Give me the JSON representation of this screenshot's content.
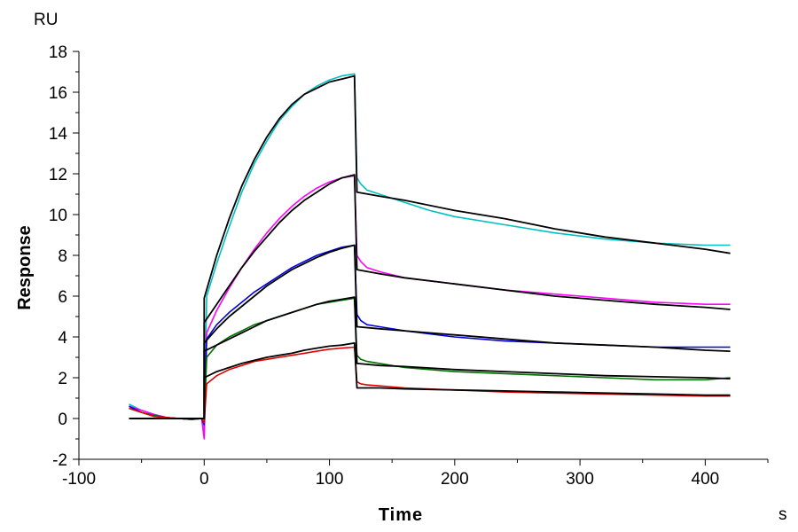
{
  "chart_data": {
    "type": "line",
    "xlabel": "Time",
    "ylabel": "Response",
    "x_unit": "s",
    "y_unit": "RU",
    "xlim": [
      -100,
      450
    ],
    "ylim": [
      -2,
      18
    ],
    "x_ticks": [
      -100,
      0,
      100,
      200,
      300,
      400
    ],
    "y_ticks": [
      -2,
      0,
      2,
      4,
      6,
      8,
      10,
      12,
      14,
      16,
      18
    ],
    "x_tick_labels": [
      "-100",
      "0",
      "100",
      "200",
      "300",
      "400"
    ],
    "y_tick_labels": [
      "-2",
      "0",
      "2",
      "4",
      "6",
      "8",
      "10",
      "12",
      "14",
      "16",
      "18"
    ],
    "grid": false,
    "series": [
      {
        "color": "#00c0c0",
        "role": "measured",
        "x": [
          -60,
          -50,
          -40,
          -30,
          -20,
          -10,
          -2,
          0,
          2,
          10,
          20,
          30,
          40,
          50,
          60,
          70,
          80,
          90,
          100,
          110,
          120,
          122,
          125,
          130,
          140,
          160,
          180,
          200,
          240,
          280,
          320,
          360,
          400,
          420
        ],
        "y": [
          0.7,
          0.4,
          0.2,
          0.05,
          0.0,
          -0.05,
          0.0,
          -0.5,
          6.0,
          7.6,
          9.4,
          11.1,
          12.5,
          13.6,
          14.6,
          15.3,
          15.9,
          16.3,
          16.6,
          16.8,
          16.9,
          11.8,
          11.5,
          11.2,
          11.0,
          10.6,
          10.2,
          9.9,
          9.5,
          9.1,
          8.8,
          8.6,
          8.5,
          8.5
        ]
      },
      {
        "color": "#ff00ff",
        "role": "measured",
        "x": [
          -60,
          -50,
          -40,
          -30,
          -20,
          -10,
          -2,
          0,
          2,
          10,
          20,
          30,
          40,
          50,
          60,
          70,
          80,
          90,
          100,
          110,
          120,
          122,
          125,
          130,
          140,
          160,
          200,
          240,
          280,
          320,
          360,
          400,
          420
        ],
        "y": [
          0.6,
          0.4,
          0.2,
          0.05,
          0.0,
          -0.05,
          0.0,
          -1.0,
          4.2,
          5.3,
          6.4,
          7.4,
          8.3,
          9.1,
          9.8,
          10.4,
          10.9,
          11.3,
          11.6,
          11.8,
          11.9,
          8.0,
          7.7,
          7.4,
          7.2,
          6.9,
          6.6,
          6.3,
          6.1,
          5.9,
          5.7,
          5.6,
          5.6
        ]
      },
      {
        "color": "#0000e0",
        "role": "measured",
        "x": [
          -60,
          -50,
          -40,
          -30,
          -20,
          -10,
          -2,
          0,
          2,
          10,
          20,
          30,
          40,
          50,
          60,
          70,
          80,
          90,
          100,
          110,
          120,
          122,
          125,
          130,
          140,
          160,
          200,
          240,
          280,
          320,
          360,
          400,
          420
        ],
        "y": [
          0.6,
          0.3,
          0.15,
          0.05,
          0.0,
          -0.05,
          0.0,
          -0.3,
          3.9,
          4.6,
          5.2,
          5.7,
          6.2,
          6.6,
          7.0,
          7.4,
          7.7,
          8.0,
          8.2,
          8.4,
          8.5,
          5.1,
          4.8,
          4.6,
          4.5,
          4.3,
          4.0,
          3.8,
          3.7,
          3.6,
          3.5,
          3.5,
          3.5
        ]
      },
      {
        "color": "#007000",
        "role": "measured",
        "x": [
          -60,
          -50,
          -40,
          -30,
          -20,
          -10,
          -2,
          0,
          2,
          10,
          20,
          30,
          40,
          50,
          60,
          70,
          80,
          90,
          100,
          110,
          120,
          122,
          125,
          130,
          140,
          160,
          200,
          240,
          280,
          320,
          360,
          400,
          420
        ],
        "y": [
          0.5,
          0.3,
          0.15,
          0.05,
          0.0,
          -0.05,
          0.0,
          -0.2,
          3.0,
          3.6,
          4.0,
          4.3,
          4.6,
          4.8,
          5.0,
          5.2,
          5.4,
          5.6,
          5.7,
          5.8,
          5.9,
          3.1,
          2.9,
          2.8,
          2.7,
          2.5,
          2.3,
          2.2,
          2.1,
          2.0,
          1.9,
          1.9,
          2.0
        ]
      },
      {
        "color": "#e00000",
        "role": "measured",
        "x": [
          -60,
          -50,
          -40,
          -30,
          -20,
          -10,
          -2,
          0,
          2,
          10,
          20,
          30,
          40,
          50,
          60,
          70,
          80,
          90,
          100,
          110,
          120,
          122,
          125,
          130,
          140,
          160,
          200,
          240,
          280,
          320,
          360,
          400,
          420
        ],
        "y": [
          0.5,
          0.3,
          0.1,
          0.05,
          0.0,
          -0.05,
          0.0,
          -0.2,
          1.7,
          2.1,
          2.4,
          2.6,
          2.8,
          2.9,
          3.0,
          3.1,
          3.2,
          3.3,
          3.4,
          3.45,
          3.5,
          1.8,
          1.7,
          1.65,
          1.6,
          1.5,
          1.4,
          1.3,
          1.25,
          1.2,
          1.15,
          1.1,
          1.1
        ]
      },
      {
        "color": "#000000",
        "role": "fit",
        "x": [
          -60,
          0,
          0,
          10,
          20,
          30,
          40,
          50,
          60,
          70,
          80,
          90,
          100,
          110,
          120,
          122,
          140,
          160,
          200,
          240,
          280,
          320,
          360,
          400,
          420
        ],
        "y": [
          0,
          0,
          5.9,
          8.0,
          9.8,
          11.4,
          12.7,
          13.8,
          14.7,
          15.4,
          15.9,
          16.2,
          16.5,
          16.65,
          16.8,
          11.1,
          10.9,
          10.7,
          10.2,
          9.8,
          9.3,
          8.9,
          8.6,
          8.3,
          8.1
        ]
      },
      {
        "color": "#000000",
        "role": "fit",
        "x": [
          -60,
          0,
          0,
          10,
          20,
          30,
          40,
          50,
          60,
          70,
          80,
          90,
          100,
          110,
          120,
          122,
          140,
          160,
          200,
          240,
          280,
          320,
          360,
          400,
          420
        ],
        "y": [
          0,
          0,
          4.7,
          5.6,
          6.5,
          7.4,
          8.2,
          8.9,
          9.6,
          10.2,
          10.7,
          11.1,
          11.5,
          11.8,
          11.95,
          7.3,
          7.1,
          6.9,
          6.6,
          6.3,
          6.0,
          5.8,
          5.6,
          5.45,
          5.35
        ]
      },
      {
        "color": "#000000",
        "role": "fit",
        "x": [
          -60,
          0,
          0,
          10,
          20,
          30,
          40,
          50,
          60,
          70,
          80,
          90,
          100,
          110,
          120,
          122,
          140,
          160,
          200,
          240,
          280,
          320,
          360,
          400,
          420
        ],
        "y": [
          0,
          0,
          3.7,
          4.4,
          5.0,
          5.5,
          6.0,
          6.5,
          6.9,
          7.3,
          7.6,
          7.9,
          8.15,
          8.35,
          8.5,
          4.5,
          4.4,
          4.3,
          4.1,
          3.9,
          3.7,
          3.6,
          3.5,
          3.35,
          3.3
        ]
      },
      {
        "color": "#000000",
        "role": "fit",
        "x": [
          -60,
          0,
          0,
          10,
          20,
          30,
          40,
          50,
          60,
          70,
          80,
          90,
          100,
          110,
          120,
          122,
          140,
          160,
          200,
          240,
          280,
          320,
          360,
          400,
          420
        ],
        "y": [
          0,
          0,
          3.3,
          3.6,
          3.9,
          4.2,
          4.5,
          4.8,
          5.0,
          5.2,
          5.4,
          5.6,
          5.75,
          5.85,
          5.95,
          2.7,
          2.6,
          2.55,
          2.4,
          2.3,
          2.2,
          2.1,
          2.05,
          2.0,
          1.95
        ]
      },
      {
        "color": "#000000",
        "role": "fit",
        "x": [
          -60,
          0,
          0,
          10,
          20,
          30,
          40,
          50,
          60,
          70,
          80,
          90,
          100,
          110,
          120,
          122,
          140,
          160,
          200,
          240,
          280,
          320,
          360,
          400,
          420
        ],
        "y": [
          0,
          0,
          2.0,
          2.3,
          2.5,
          2.7,
          2.85,
          3.0,
          3.1,
          3.2,
          3.35,
          3.45,
          3.55,
          3.6,
          3.7,
          1.5,
          1.5,
          1.45,
          1.4,
          1.35,
          1.3,
          1.25,
          1.2,
          1.15,
          1.15
        ]
      }
    ]
  }
}
